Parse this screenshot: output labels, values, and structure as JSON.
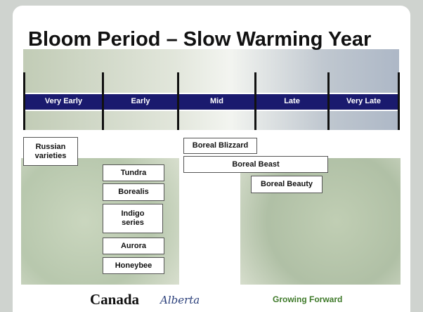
{
  "title": "Bloom Period – Slow Warming Year",
  "timeline": {
    "periods": [
      "Very Early",
      "Early",
      "Mid",
      "Late",
      "Very Late"
    ]
  },
  "varieties": [
    "Russian varieties",
    "Tundra",
    "Borealis",
    "Indigo series",
    "Aurora",
    "Honeybee",
    "Boreal Blizzard",
    "Boreal Beast",
    "Boreal Beauty"
  ],
  "logos": [
    "Canada",
    "Alberta",
    "Growing Forward"
  ]
}
